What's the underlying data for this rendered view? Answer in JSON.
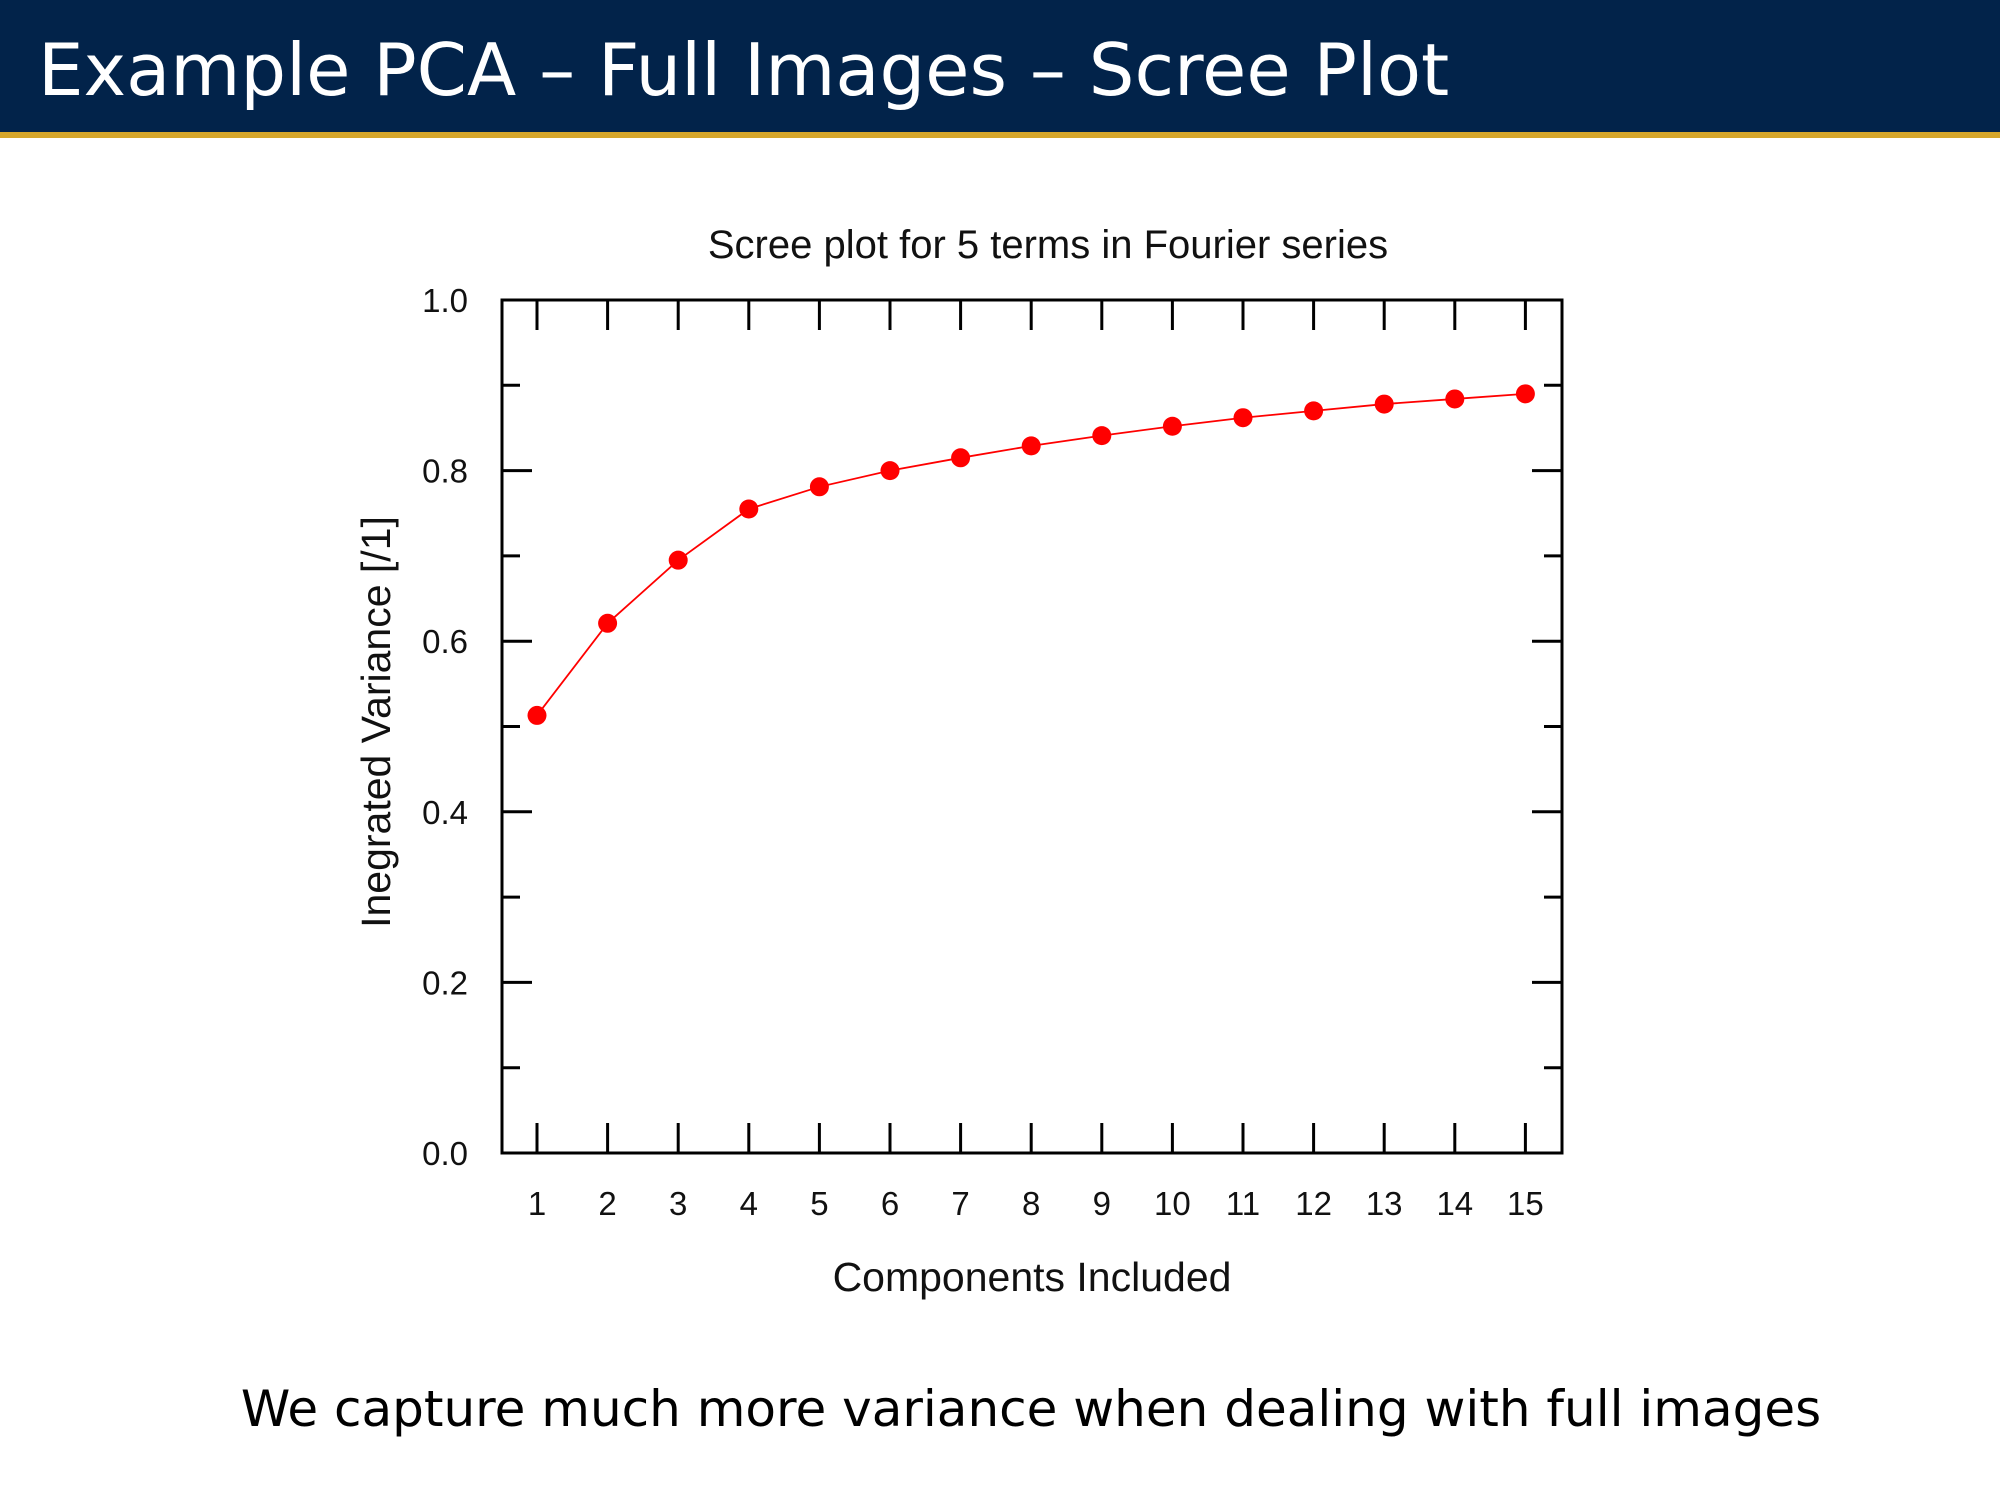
{
  "slide": {
    "title": "Example PCA – Full Images – Scree Plot",
    "caption": "We capture much more variance when dealing with full images",
    "colors": {
      "header_bg": "#02234a",
      "header_rule": "#d5a62b",
      "series": "#ff0000"
    }
  },
  "chart_data": {
    "type": "line",
    "title": "Scree plot for 5 terms in Fourier series",
    "xlabel": "Components Included",
    "ylabel": "Inegrated Variance [/1]",
    "x": [
      1,
      2,
      3,
      4,
      5,
      6,
      7,
      8,
      9,
      10,
      11,
      12,
      13,
      14,
      15
    ],
    "x_tick_labels": [
      "1",
      "2",
      "3",
      "4",
      "5",
      "6",
      "7",
      "8",
      "9",
      "10",
      "11",
      "12",
      "13",
      "14",
      "15"
    ],
    "y": [
      0.513,
      0.621,
      0.695,
      0.755,
      0.781,
      0.8,
      0.815,
      0.829,
      0.841,
      0.852,
      0.862,
      0.87,
      0.878,
      0.884,
      0.89
    ],
    "ylim": [
      0.0,
      1.0
    ],
    "y_ticks": [
      0.0,
      0.2,
      0.4,
      0.6,
      0.8,
      1.0
    ],
    "y_tick_labels": [
      "0.0",
      "0.2",
      "0.4",
      "0.6",
      "0.8",
      "1.0"
    ],
    "y_minor_ticks": [
      0.1,
      0.3,
      0.5,
      0.7,
      0.9
    ],
    "grid": false,
    "legend": "none",
    "markers": "filled circles"
  }
}
